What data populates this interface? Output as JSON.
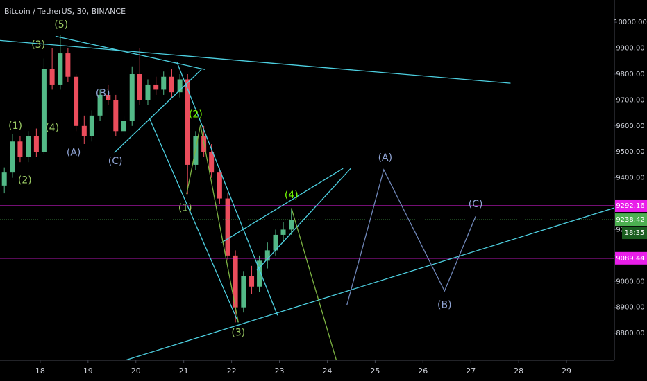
{
  "chart_data": {
    "type": "candlestick",
    "title": "Bitcoin / TetherUS, 30, BINANCE",
    "xlim": [
      17.16,
      30.0
    ],
    "xticks": [
      18,
      19,
      20,
      21,
      22,
      23,
      24,
      25,
      26,
      27,
      28,
      29
    ],
    "ylim": [
      8696,
      10086
    ],
    "yticks": [
      {
        "value": 8800,
        "label": "8800.00"
      },
      {
        "value": 8900,
        "label": "8900.00"
      },
      {
        "value": 9000,
        "label": "9000.00"
      },
      {
        "value": 9100,
        "label": "9100.00"
      },
      {
        "value": 9200,
        "label": "9200.00"
      },
      {
        "value": 9300,
        "label": "9300.00"
      },
      {
        "value": 9400,
        "label": "9400.00"
      },
      {
        "value": 9500,
        "label": "9500.00"
      },
      {
        "value": 9600,
        "label": "9600.00"
      },
      {
        "value": 9700,
        "label": "9700.00"
      },
      {
        "value": 9800,
        "label": "9800.00"
      },
      {
        "value": 9900,
        "label": "9900.00"
      },
      {
        "value": 10000,
        "label": "10000.00"
      }
    ],
    "up_color": "#53b987",
    "down_color": "#eb4d5c",
    "x": [
      17.25,
      17.42,
      17.58,
      17.75,
      17.92,
      18.08,
      18.25,
      18.42,
      18.58,
      18.75,
      18.92,
      19.08,
      19.25,
      19.42,
      19.58,
      19.75,
      19.92,
      20.08,
      20.25,
      20.42,
      20.58,
      20.75,
      20.92,
      21.08,
      21.25,
      21.42,
      21.58,
      21.75,
      21.92,
      22.08,
      22.25,
      22.42,
      22.58,
      22.75,
      22.92,
      23.08,
      23.25
    ],
    "open": [
      9370,
      9420,
      9540,
      9480,
      9560,
      9500,
      9820,
      9760,
      9880,
      9790,
      9600,
      9560,
      9640,
      9720,
      9700,
      9580,
      9620,
      9800,
      9700,
      9760,
      9740,
      9790,
      9730,
      9780,
      9450,
      9560,
      9500,
      9420,
      9320,
      9100,
      8900,
      9020,
      8980,
      9080,
      9120,
      9180,
      9200
    ],
    "high": [
      9440,
      9570,
      9560,
      9580,
      9590,
      9860,
      9900,
      9950,
      9900,
      9800,
      9640,
      9660,
      9740,
      9760,
      9720,
      9640,
      9830,
      9900,
      9780,
      9790,
      9810,
      9820,
      9800,
      9800,
      9580,
      9600,
      9530,
      9440,
      9340,
      9120,
      9040,
      9060,
      9100,
      9150,
      9200,
      9230,
      9280
    ],
    "low": [
      9340,
      9400,
      9460,
      9460,
      9480,
      9490,
      9740,
      9740,
      9770,
      9580,
      9530,
      9540,
      9620,
      9680,
      9560,
      9560,
      9600,
      9680,
      9680,
      9720,
      9720,
      9710,
      9710,
      9337,
      9430,
      9480,
      9400,
      9300,
      9080,
      8842,
      8880,
      8950,
      8960,
      9050,
      9100,
      9150,
      9180
    ],
    "close": [
      9420,
      9540,
      9480,
      9560,
      9500,
      9820,
      9760,
      9880,
      9790,
      9600,
      9560,
      9640,
      9720,
      9700,
      9580,
      9620,
      9800,
      9700,
      9760,
      9740,
      9790,
      9730,
      9780,
      9450,
      9560,
      9500,
      9420,
      9320,
      9100,
      8900,
      9020,
      8980,
      9080,
      9120,
      9180,
      9200,
      9238
    ],
    "levels": [
      {
        "value": 9292.16,
        "color": "#e91ee9",
        "style": "solid"
      },
      {
        "value": 9089.44,
        "color": "#e91ee9",
        "style": "solid"
      },
      {
        "value": 9238.42,
        "color": "#4caf50",
        "style": "dotted"
      }
    ],
    "countdown": "18:35",
    "lines": [
      {
        "color": "#4dd0e1",
        "x": [
          17.16,
          27.83
        ],
        "y": [
          9930,
          9765
        ]
      },
      {
        "color": "#4dd0e1",
        "x": [
          18.32,
          21.44
        ],
        "y": [
          9946,
          9818
        ]
      },
      {
        "color": "#4dd0e1",
        "x": [
          19.55,
          21.37
        ],
        "y": [
          9497,
          9818
        ]
      },
      {
        "color": "#4dd0e1",
        "x": [
          20.86,
          22.96
        ],
        "y": [
          9845,
          8869
        ]
      },
      {
        "color": "#4dd0e1",
        "x": [
          20.28,
          22.14
        ],
        "y": [
          9631,
          8842
        ]
      },
      {
        "color": "#4dd0e1",
        "x": [
          19.78,
          30.0
        ],
        "y": [
          8696,
          9284
        ]
      },
      {
        "color": "#4dd0e1",
        "x": [
          21.79,
          24.33
        ],
        "y": [
          9150,
          9436
        ]
      },
      {
        "color": "#4dd0e1",
        "x": [
          22.53,
          24.49
        ],
        "y": [
          9043,
          9436
        ]
      },
      {
        "color": "#7cb342",
        "x": [
          21.06,
          21.35,
          22.14
        ],
        "y": [
          9337,
          9604,
          8842
        ]
      },
      {
        "color": "#7cb342",
        "x": [
          23.25,
          24.19
        ],
        "y": [
          9283,
          8696
        ]
      },
      {
        "color": "#6f86b8",
        "x": [
          24.41,
          25.18,
          26.45,
          27.1
        ],
        "y": [
          8909,
          9431,
          8963,
          9251
        ]
      }
    ],
    "waves": [
      {
        "text": "(5)",
        "x": 18.44,
        "y": 9990,
        "color": "#9ccc65"
      },
      {
        "text": "(3)",
        "x": 17.96,
        "y": 9912,
        "color": "#9ccc65"
      },
      {
        "text": "(1)",
        "x": 17.48,
        "y": 9599,
        "color": "#9ccc65"
      },
      {
        "text": "(2)",
        "x": 17.68,
        "y": 9390,
        "color": "#9ccc65"
      },
      {
        "text": "(4)",
        "x": 18.25,
        "y": 9591,
        "color": "#9ccc65"
      },
      {
        "text": "(A)",
        "x": 18.7,
        "y": 9497,
        "color": "#90a4d4"
      },
      {
        "text": "(B)",
        "x": 19.31,
        "y": 9725,
        "color": "#90a4d4"
      },
      {
        "text": "(C)",
        "x": 19.57,
        "y": 9463,
        "color": "#90a4d4"
      },
      {
        "text": "(2)",
        "x": 21.25,
        "y": 9644,
        "color": "#76ff03"
      },
      {
        "text": "(1)",
        "x": 21.03,
        "y": 9283,
        "color": "#9ccc65"
      },
      {
        "text": "(3)",
        "x": 22.14,
        "y": 8802,
        "color": "#9ccc65"
      },
      {
        "text": "(4)",
        "x": 23.25,
        "y": 9332,
        "color": "#76ff03"
      },
      {
        "text": "(A)",
        "x": 25.21,
        "y": 9476,
        "color": "#90a4d4"
      },
      {
        "text": "(B)",
        "x": 26.45,
        "y": 8909,
        "color": "#90a4d4"
      },
      {
        "text": "(C)",
        "x": 27.1,
        "y": 9297,
        "color": "#90a4d4"
      }
    ]
  }
}
